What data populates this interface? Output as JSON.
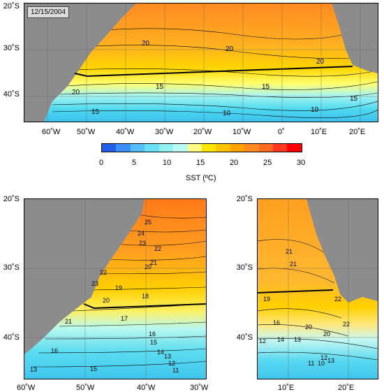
{
  "date": "12/15/2004",
  "colorbar": {
    "ticks": [
      "0",
      "5",
      "10",
      "15",
      "20",
      "25",
      "30"
    ],
    "label": "SST (ºC)",
    "colors": [
      "#2060e8",
      "#3a8ff5",
      "#55bdf7",
      "#6ae0f7",
      "#8ff2f0",
      "#b8fbf5",
      "#fffb84",
      "#ffe600",
      "#ffc400",
      "#ffa300",
      "#ff8a20",
      "#ff6a20",
      "#ff3a20",
      "#ff0000"
    ]
  },
  "top_map": {
    "x_ticks": [
      "60˚W",
      "50˚W",
      "40˚W",
      "30˚W",
      "20˚W",
      "10˚W",
      "0˚",
      "10˚E",
      "20˚E"
    ],
    "y_ticks": [
      "20˚S",
      "30˚S",
      "40˚S"
    ],
    "contour_labels": [
      "20",
      "20",
      "20",
      "15",
      "15",
      "10",
      "10",
      "15",
      "15",
      "20"
    ]
  },
  "bottom_left_map": {
    "x_ticks": [
      "60˚W",
      "50˚W",
      "40˚W",
      "30˚W"
    ],
    "y_ticks": [
      "20˚S",
      "30˚S",
      "40˚S"
    ],
    "contour_labels": [
      "25",
      "24",
      "23",
      "22",
      "21",
      "20",
      "19",
      "18",
      "17",
      "16",
      "15",
      "14",
      "13",
      "12",
      "11",
      "13",
      "15",
      "16",
      "22",
      "21",
      "23",
      "20"
    ]
  },
  "bottom_right_map": {
    "x_ticks": [
      "10˚E",
      "20˚E"
    ],
    "y_ticks": [
      "20˚S",
      "30˚S",
      "40˚S"
    ],
    "contour_labels": [
      "21",
      "21",
      "19",
      "22",
      "20",
      "16",
      "14",
      "13",
      "12",
      "11",
      "10",
      "12",
      "13",
      "20",
      "22"
    ]
  },
  "colors": {
    "land": "#8c8c8c",
    "line": "#000000"
  }
}
